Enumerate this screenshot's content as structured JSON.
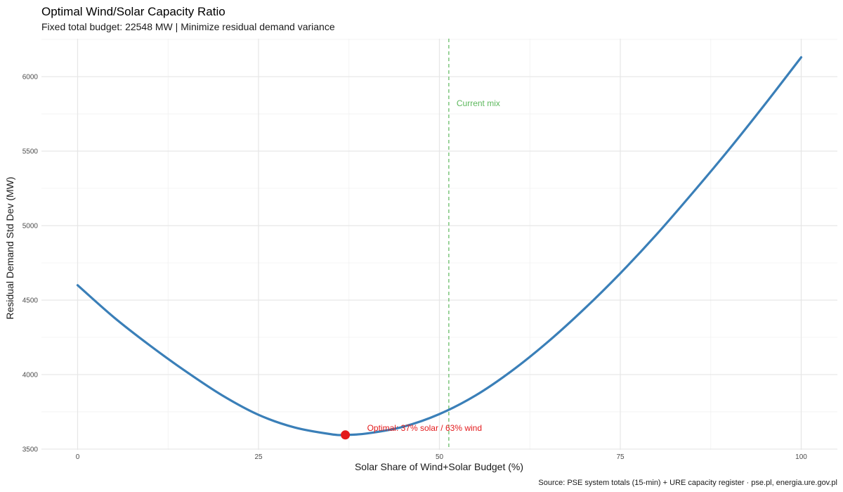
{
  "chart_data": {
    "type": "line",
    "title": "Optimal Wind/Solar Capacity Ratio",
    "subtitle": "Fixed total budget: 22548 MW | Minimize residual demand variance",
    "xlabel": "Solar Share of Wind+Solar Budget (%)",
    "ylabel": "Residual Demand Std Dev (MW)",
    "caption": "Source: PSE system totals (15-min) + URE capacity register · pse.pl, energia.ure.gov.pl",
    "xlim": [
      -5,
      105
    ],
    "ylim": [
      3495,
      6255
    ],
    "x_ticks": [
      0,
      25,
      50,
      75,
      100
    ],
    "x_tick_labels": [
      "0",
      "25",
      "50",
      "75",
      "100"
    ],
    "y_ticks": [
      3500,
      4000,
      4500,
      5000,
      5500,
      6000
    ],
    "y_tick_labels": [
      "3500",
      "4000",
      "4500",
      "5000",
      "5500",
      "6000"
    ],
    "grid": true,
    "series": [
      {
        "color": "#3a7fb8",
        "x": [
          0,
          5,
          10,
          15,
          20,
          25,
          30,
          35,
          37,
          40,
          45,
          50,
          55,
          60,
          65,
          70,
          75,
          80,
          85,
          90,
          95,
          100
        ],
        "y": [
          4600,
          4385,
          4195,
          4020,
          3860,
          3730,
          3645,
          3600,
          3595,
          3605,
          3650,
          3735,
          3860,
          4025,
          4220,
          4440,
          4680,
          4940,
          5220,
          5510,
          5815,
          6130
        ]
      }
    ],
    "optimal_point": {
      "x": 37,
      "y": 3595,
      "color": "#e31a1c",
      "label": "Optimal: 37% solar / 63% wind"
    },
    "current_mix": {
      "x": 51.3,
      "color": "#5cb85c",
      "label": "Current mix"
    }
  }
}
